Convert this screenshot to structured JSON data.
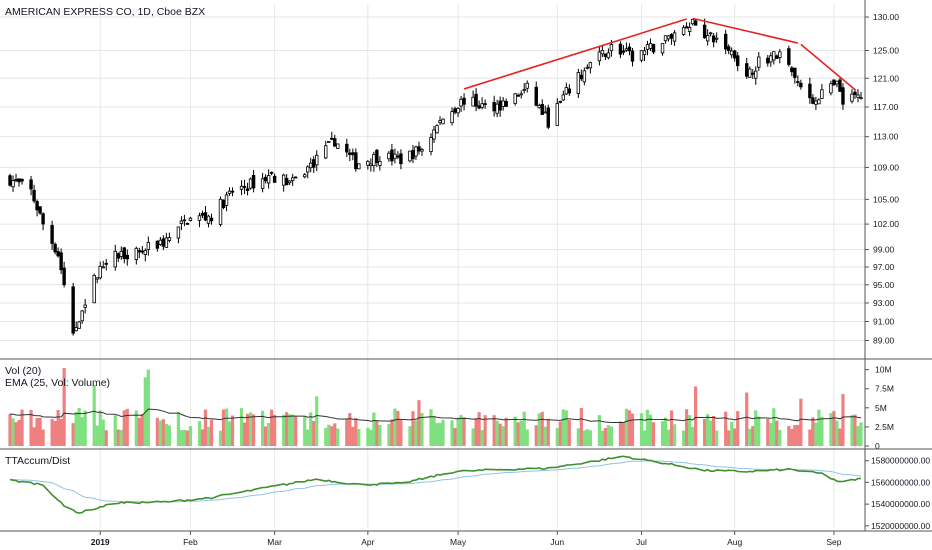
{
  "header": {
    "title": "AMERICAN EXPRESS CO, 1D, Cboe BZX"
  },
  "colors": {
    "up": "#26a69a",
    "candle_body_up": "#ffffff",
    "candle_body_down": "#000000",
    "vol_up": "#7fe07f",
    "vol_down": "#f08080",
    "ema": "#333333",
    "trendline": "#e8231f",
    "accum": "#3f8f2e",
    "accum_signal": "#8fc3e8",
    "grid": "#e6e6e6",
    "separator": "#555555"
  },
  "volume_pane": {
    "label1": "Vol (20)",
    "label2": "EMA (25, Vol: Volume)",
    "ticks": [
      "10M",
      "7.5M",
      "5M",
      "2.5M",
      "0"
    ]
  },
  "indicator_pane": {
    "label": "TTAccum/Dist",
    "ticks": [
      "1580000000.00",
      "1560000000.00",
      "1540000000.00",
      "1520000000.00"
    ]
  },
  "x_labels": [
    "2019",
    "Feb",
    "Mar",
    "Apr",
    "May",
    "Jun",
    "Jul",
    "Aug",
    "Sep"
  ],
  "chart_data": {
    "type": "candlestick",
    "title": "AMERICAN EXPRESS CO, 1D, Cboe BZX",
    "y_ticks": [
      130.0,
      125.0,
      121.0,
      117.0,
      113.0,
      109.0,
      105.0,
      102.0,
      99.0,
      97.0,
      95.0,
      93.0,
      91.0,
      89.0
    ],
    "y_tick_labels": [
      "130.00",
      "125.00",
      "121.00",
      "117.00",
      "113.00",
      "109.00",
      "105.00",
      "102.00",
      "99.00",
      "97.00",
      "95.00",
      "93.00",
      "91.00",
      "89.00"
    ],
    "y_scale": "log",
    "ylim": [
      87.5,
      132
    ],
    "x_range": [
      "2018-12-01",
      "2019-09-12"
    ],
    "x_tick_dates": [
      "2019-01-02",
      "2019-02-01",
      "2019-03-01",
      "2019-04-01",
      "2019-05-01",
      "2019-06-03",
      "2019-07-01",
      "2019-08-01",
      "2019-09-03"
    ],
    "close_path": [
      [
        "2018-12-03",
        107.5
      ],
      [
        "2018-12-10",
        106.0
      ],
      [
        "2018-12-14",
        102.0
      ],
      [
        "2018-12-19",
        98.5
      ],
      [
        "2018-12-21",
        95.0
      ],
      [
        "2018-12-24",
        89.5
      ],
      [
        "2018-12-27",
        92.5
      ],
      [
        "2018-12-31",
        95.5
      ],
      [
        "2019-01-04",
        98.0
      ],
      [
        "2019-01-10",
        98.5
      ],
      [
        "2019-01-17",
        99.0
      ],
      [
        "2019-01-24",
        100.0
      ],
      [
        "2019-01-31",
        102.5
      ],
      [
        "2019-02-08",
        103.0
      ],
      [
        "2019-02-15",
        106.0
      ],
      [
        "2019-02-22",
        107.0
      ],
      [
        "2019-02-28",
        108.0
      ],
      [
        "2019-03-07",
        107.0
      ],
      [
        "2019-03-15",
        110.0
      ],
      [
        "2019-03-21",
        112.5
      ],
      [
        "2019-03-28",
        109.5
      ],
      [
        "2019-04-05",
        110.5
      ],
      [
        "2019-04-12",
        110.0
      ],
      [
        "2019-04-19",
        111.5
      ],
      [
        "2019-04-26",
        115.5
      ],
      [
        "2019-05-03",
        118.0
      ],
      [
        "2019-05-10",
        117.0
      ],
      [
        "2019-05-17",
        117.5
      ],
      [
        "2019-05-24",
        119.5
      ],
      [
        "2019-05-31",
        115.0
      ],
      [
        "2019-06-07",
        119.5
      ],
      [
        "2019-06-14",
        123.0
      ],
      [
        "2019-06-21",
        125.5
      ],
      [
        "2019-06-28",
        124.0
      ],
      [
        "2019-07-05",
        125.5
      ],
      [
        "2019-07-12",
        127.5
      ],
      [
        "2019-07-18",
        129.5
      ],
      [
        "2019-07-23",
        127.0
      ],
      [
        "2019-07-26",
        126.5
      ],
      [
        "2019-08-01",
        124.5
      ],
      [
        "2019-08-05",
        121.0
      ],
      [
        "2019-08-09",
        123.5
      ],
      [
        "2019-08-16",
        124.5
      ],
      [
        "2019-08-21",
        121.0
      ],
      [
        "2019-08-26",
        117.5
      ],
      [
        "2019-08-30",
        119.0
      ],
      [
        "2019-09-04",
        120.0
      ],
      [
        "2019-09-06",
        117.5
      ],
      [
        "2019-09-11",
        118.5
      ]
    ],
    "trendlines": [
      {
        "from": [
          "2019-05-03",
          119.5
        ],
        "to": [
          "2019-07-16",
          129.7
        ]
      },
      {
        "from": [
          "2019-07-18",
          129.8
        ],
        "to": [
          "2019-08-22",
          126.1
        ]
      },
      {
        "from": [
          "2019-08-23",
          125.9
        ],
        "to": [
          "2019-09-10",
          119.4
        ]
      }
    ],
    "volume": {
      "ylim": [
        0,
        11
      ],
      "unit": "M",
      "notable_days": [
        [
          "2018-12-21",
          10.2
        ],
        [
          "2018-12-31",
          8.0
        ],
        [
          "2019-01-17",
          9.0
        ],
        [
          "2019-01-18",
          10.0
        ],
        [
          "2019-03-15",
          6.5
        ],
        [
          "2019-04-18",
          6.0
        ],
        [
          "2019-07-19",
          7.8
        ],
        [
          "2019-08-05",
          7.0
        ],
        [
          "2019-08-23",
          6.2
        ],
        [
          "2019-09-06",
          6.8
        ]
      ],
      "typical_range": [
        2.0,
        5.0
      ],
      "ema_period": 25
    },
    "accum_dist": {
      "ylim": [
        1518000000,
        1588000000
      ],
      "path": [
        [
          "2018-12-03",
          1562000000
        ],
        [
          "2018-12-14",
          1558000000
        ],
        [
          "2018-12-21",
          1538000000
        ],
        [
          "2018-12-26",
          1532000000
        ],
        [
          "2019-01-07",
          1541000000
        ],
        [
          "2019-01-24",
          1542000000
        ],
        [
          "2019-02-08",
          1546000000
        ],
        [
          "2019-02-28",
          1556000000
        ],
        [
          "2019-03-15",
          1563000000
        ],
        [
          "2019-03-29",
          1558000000
        ],
        [
          "2019-04-12",
          1559000000
        ],
        [
          "2019-04-30",
          1570000000
        ],
        [
          "2019-05-17",
          1572000000
        ],
        [
          "2019-05-31",
          1573000000
        ],
        [
          "2019-06-14",
          1579000000
        ],
        [
          "2019-06-25",
          1584000000
        ],
        [
          "2019-07-08",
          1578000000
        ],
        [
          "2019-07-22",
          1571000000
        ],
        [
          "2019-08-05",
          1570000000
        ],
        [
          "2019-08-19",
          1572000000
        ],
        [
          "2019-08-30",
          1568000000
        ],
        [
          "2019-09-05",
          1560000000
        ],
        [
          "2019-09-11",
          1563000000
        ]
      ]
    }
  }
}
